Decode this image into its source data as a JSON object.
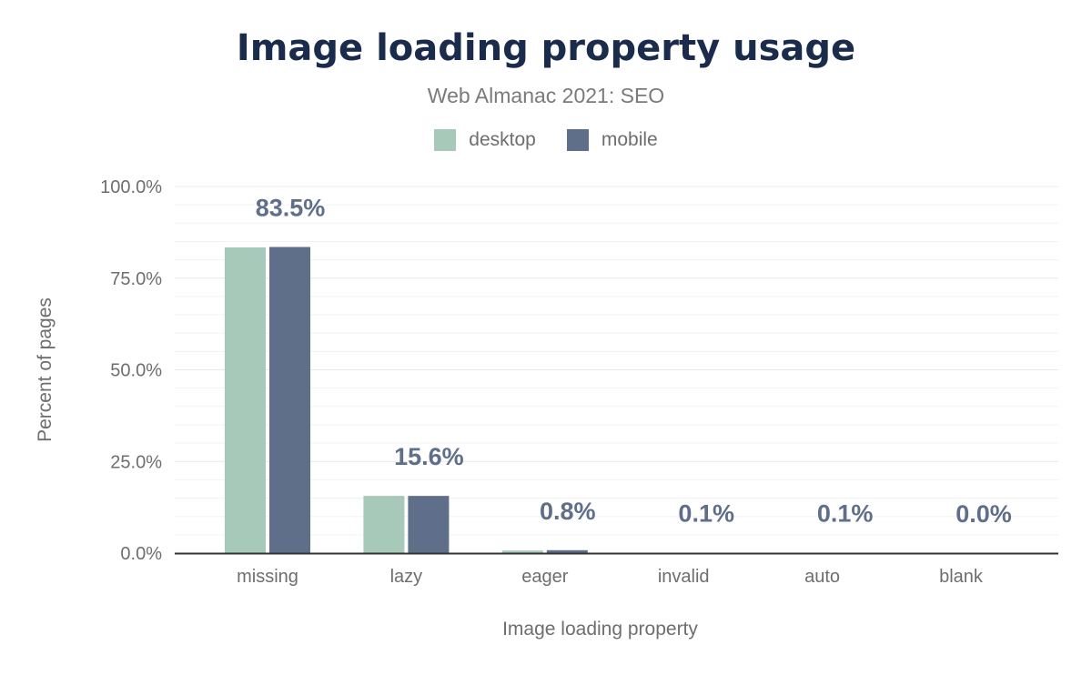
{
  "chart_data": {
    "type": "bar",
    "title": "Image loading property usage",
    "subtitle": "Web Almanac 2021: SEO",
    "xlabel": "Image loading property",
    "ylabel": "Percent of pages",
    "categories": [
      "missing",
      "lazy",
      "eager",
      "invalid",
      "auto",
      "blank"
    ],
    "series": [
      {
        "name": "desktop",
        "color": "#a6c9b9",
        "values": [
          83.4,
          15.6,
          0.7,
          0.1,
          0.1,
          0.0
        ]
      },
      {
        "name": "mobile",
        "color": "#5f6f8a",
        "values": [
          83.5,
          15.6,
          0.8,
          0.1,
          0.1,
          0.0
        ]
      }
    ],
    "data_labels": [
      "83.5%",
      "15.6%",
      "0.8%",
      "0.1%",
      "0.1%",
      "0.0%"
    ],
    "ylim": [
      0,
      100
    ],
    "yticks": [
      "0.0%",
      "25.0%",
      "50.0%",
      "75.0%",
      "100.0%"
    ],
    "grid": true,
    "legend_position": "top"
  }
}
